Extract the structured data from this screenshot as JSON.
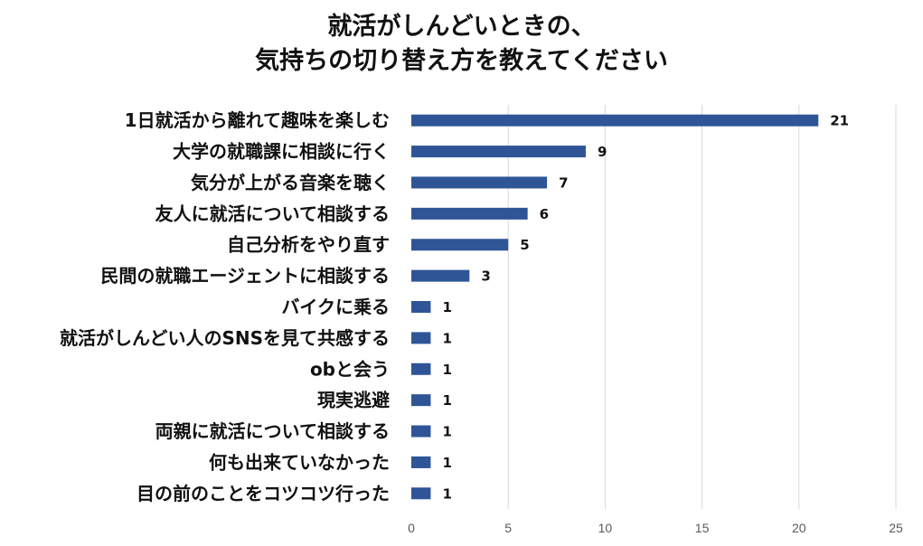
{
  "chart_data": {
    "type": "bar",
    "orientation": "horizontal",
    "title_lines": [
      "就活がしんどいときの、",
      "気持ちの切り替え方を教えてください"
    ],
    "categories": [
      "1日就活から離れて趣味を楽しむ",
      "大学の就職課に相談に行く",
      "気分が上がる音楽を聴く",
      "友人に就活について相談する",
      "自己分析をやり直す",
      "民間の就職エージェントに相談する",
      "バイクに乗る",
      "就活がしんどい人のSNSを見て共感する",
      "obと会う",
      "現実逃避",
      "両親に就活について相談する",
      "何も出来ていなかった",
      "目の前のことをコツコツ行った"
    ],
    "values": [
      21,
      9,
      7,
      6,
      5,
      3,
      1,
      1,
      1,
      1,
      1,
      1,
      1
    ],
    "xlim": [
      0,
      25
    ],
    "x_ticks": [
      0,
      5,
      10,
      15,
      20,
      25
    ],
    "grid": true,
    "legend": "none",
    "bar_color": "#2f5597",
    "grid_color": "#d9d9d9",
    "data_labels": true
  }
}
